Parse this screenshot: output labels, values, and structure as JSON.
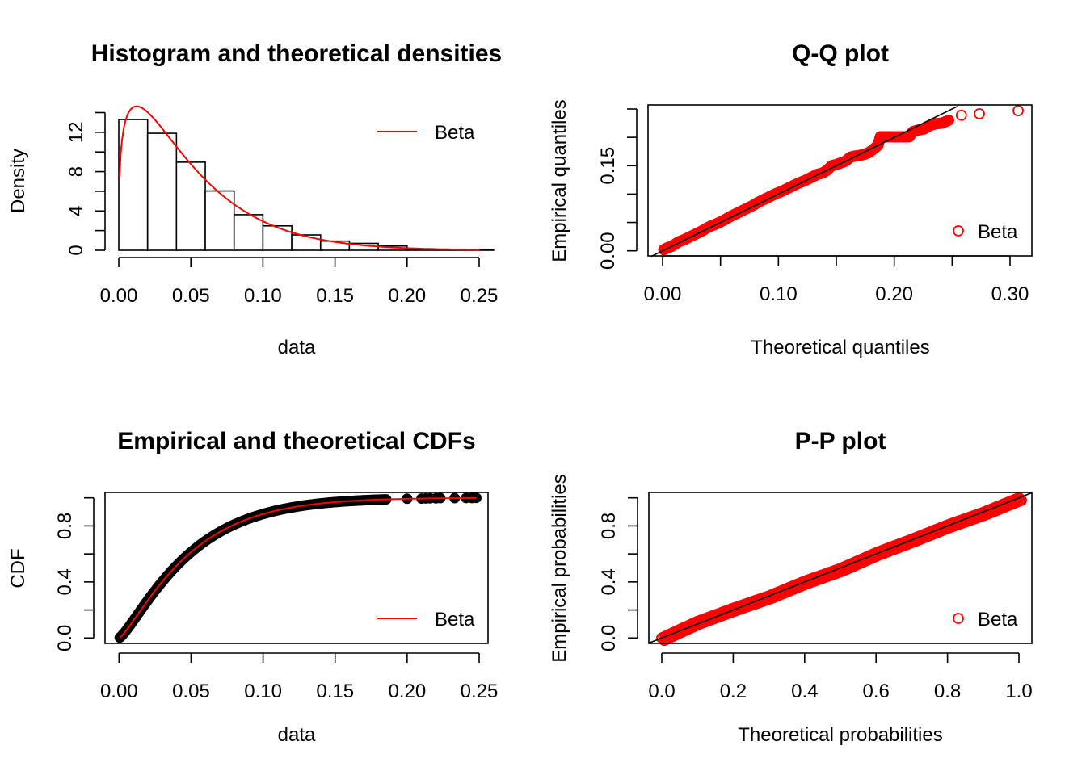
{
  "chart_data": [
    {
      "type": "bar",
      "id": "histogram",
      "title": "Histogram and theoretical densities",
      "xlabel": "data",
      "ylabel": "Density",
      "xlim": [
        0,
        0.26
      ],
      "ylim": [
        0,
        14
      ],
      "xticks": [
        0.0,
        0.05,
        0.1,
        0.15,
        0.2,
        0.25
      ],
      "xtick_labels": [
        "0.00",
        "0.05",
        "0.10",
        "0.15",
        "0.20",
        "0.25"
      ],
      "yticks": [
        0,
        2,
        4,
        6,
        8,
        10,
        12,
        14
      ],
      "ytick_labels": [
        "0",
        "",
        "4",
        "",
        "8",
        "",
        "12",
        ""
      ],
      "bin_width": 0.02,
      "bins": [
        {
          "x0": 0.0,
          "density": 13.3
        },
        {
          "x0": 0.02,
          "density": 11.9
        },
        {
          "x0": 0.04,
          "density": 8.96
        },
        {
          "x0": 0.06,
          "density": 6.03
        },
        {
          "x0": 0.08,
          "density": 3.62
        },
        {
          "x0": 0.1,
          "density": 2.48
        },
        {
          "x0": 0.12,
          "density": 1.56
        },
        {
          "x0": 0.14,
          "density": 0.93
        },
        {
          "x0": 0.16,
          "density": 0.7
        },
        {
          "x0": 0.18,
          "density": 0.43
        },
        {
          "x0": 0.2,
          "density": 0.12
        },
        {
          "x0": 0.22,
          "density": 0.08
        },
        {
          "x0": 0.24,
          "density": 0.1
        }
      ],
      "fitted_curve": {
        "name": "Beta",
        "distribution": "beta",
        "shape1": 1.3,
        "shape2": 25,
        "color": "#ff0000",
        "x_range": [
          0.0,
          0.25
        ]
      },
      "legend": {
        "position": "top-right",
        "entries": [
          {
            "label": "Beta",
            "symbol": "line",
            "color": "#ff0000"
          }
        ]
      }
    },
    {
      "type": "scatter",
      "id": "qq",
      "title": "Q-Q plot",
      "xlabel": "Theoretical quantiles",
      "ylabel": "Empirical quantiles",
      "xlim": [
        -0.0125,
        0.3185
      ],
      "ylim": [
        -0.009,
        0.2545
      ],
      "xticks": [
        0.0,
        0.05,
        0.1,
        0.15,
        0.2,
        0.25,
        0.3
      ],
      "xtick_labels": [
        "0.00",
        "",
        "0.10",
        "",
        "0.20",
        "",
        "0.30"
      ],
      "yticks": [
        0.0,
        0.05,
        0.1,
        0.15,
        0.2,
        0.25
      ],
      "ytick_labels": [
        "0.00",
        "",
        "",
        "0.15",
        "",
        ""
      ],
      "reference_line": {
        "slope": 1,
        "intercept": 0,
        "color": "#000000"
      },
      "points_color": "#ff0000",
      "points": [
        [
          0.001,
          0.002
        ],
        [
          0.003,
          0.004
        ],
        [
          0.005,
          0.006
        ],
        [
          0.008,
          0.008
        ],
        [
          0.011,
          0.012
        ],
        [
          0.014,
          0.016
        ],
        [
          0.018,
          0.019
        ],
        [
          0.022,
          0.023
        ],
        [
          0.026,
          0.027
        ],
        [
          0.03,
          0.031
        ],
        [
          0.034,
          0.035
        ],
        [
          0.038,
          0.04
        ],
        [
          0.042,
          0.044
        ],
        [
          0.046,
          0.047
        ],
        [
          0.05,
          0.051
        ],
        [
          0.054,
          0.055
        ],
        [
          0.058,
          0.06
        ],
        [
          0.062,
          0.064
        ],
        [
          0.066,
          0.068
        ],
        [
          0.07,
          0.072
        ],
        [
          0.074,
          0.076
        ],
        [
          0.078,
          0.08
        ],
        [
          0.082,
          0.085
        ],
        [
          0.086,
          0.089
        ],
        [
          0.09,
          0.093
        ],
        [
          0.094,
          0.097
        ],
        [
          0.098,
          0.101
        ],
        [
          0.102,
          0.104
        ],
        [
          0.106,
          0.108
        ],
        [
          0.11,
          0.112
        ],
        [
          0.114,
          0.116
        ],
        [
          0.118,
          0.12
        ],
        [
          0.122,
          0.123
        ],
        [
          0.126,
          0.127
        ],
        [
          0.13,
          0.131
        ],
        [
          0.134,
          0.135
        ],
        [
          0.138,
          0.137
        ],
        [
          0.142,
          0.142
        ],
        [
          0.146,
          0.15
        ],
        [
          0.15,
          0.152
        ],
        [
          0.154,
          0.155
        ],
        [
          0.158,
          0.158
        ],
        [
          0.162,
          0.165
        ],
        [
          0.166,
          0.167
        ],
        [
          0.17,
          0.168
        ],
        [
          0.174,
          0.17
        ],
        [
          0.178,
          0.173
        ],
        [
          0.182,
          0.179
        ],
        [
          0.186,
          0.186
        ],
        [
          0.188,
          0.201
        ],
        [
          0.193,
          0.201
        ],
        [
          0.198,
          0.201
        ],
        [
          0.203,
          0.201
        ],
        [
          0.208,
          0.201
        ],
        [
          0.213,
          0.201
        ],
        [
          0.216,
          0.21
        ],
        [
          0.221,
          0.213
        ],
        [
          0.226,
          0.215
        ],
        [
          0.231,
          0.221
        ],
        [
          0.236,
          0.224
        ],
        [
          0.241,
          0.225
        ],
        [
          0.247,
          0.23
        ],
        [
          0.258,
          0.239
        ],
        [
          0.2735,
          0.2415
        ],
        [
          0.307,
          0.247
        ]
      ],
      "legend": {
        "position": "bottom-right",
        "entries": [
          {
            "label": "Beta",
            "symbol": "open-circle",
            "color": "#ff0000"
          }
        ]
      }
    },
    {
      "type": "line",
      "id": "cdf",
      "title": "Empirical and theoretical CDFs",
      "xlabel": "data",
      "ylabel": "CDF",
      "xlim": [
        -0.0095,
        0.2555
      ],
      "ylim": [
        -0.04,
        1.04
      ],
      "xticks": [
        0.0,
        0.05,
        0.1,
        0.15,
        0.2,
        0.25
      ],
      "xtick_labels": [
        "0.00",
        "0.05",
        "0.10",
        "0.15",
        "0.20",
        "0.25"
      ],
      "yticks": [
        0.0,
        0.2,
        0.4,
        0.6,
        0.8,
        1.0
      ],
      "ytick_labels": [
        "0.0",
        "",
        "0.4",
        "",
        "0.8",
        ""
      ],
      "theoretical": {
        "name": "Beta",
        "distribution": "beta",
        "shape1": 1.3,
        "shape2": 25,
        "color": "#ff0000"
      },
      "empirical_points_color": "#000000",
      "empirical_tail_points": [
        [
          0.2,
          0.994
        ],
        [
          0.21,
          0.995
        ],
        [
          0.213,
          0.996
        ],
        [
          0.216,
          0.997
        ],
        [
          0.22,
          0.997
        ],
        [
          0.223,
          0.998
        ],
        [
          0.233,
          0.998
        ],
        [
          0.241,
          0.999
        ],
        [
          0.245,
          0.999
        ],
        [
          0.248,
          1.0
        ]
      ],
      "legend": {
        "position": "bottom-right",
        "entries": [
          {
            "label": "Beta",
            "symbol": "line",
            "color": "#ff0000"
          }
        ]
      }
    },
    {
      "type": "scatter",
      "id": "pp",
      "title": "P-P plot",
      "xlabel": "Theoretical probabilities",
      "ylabel": "Empirical probabilities",
      "xlim": [
        -0.04,
        1.04
      ],
      "ylim": [
        -0.04,
        1.04
      ],
      "xticks": [
        0.0,
        0.2,
        0.4,
        0.6,
        0.8,
        1.0
      ],
      "xtick_labels": [
        "0.0",
        "0.2",
        "0.4",
        "0.6",
        "0.8",
        "1.0"
      ],
      "yticks": [
        0.0,
        0.2,
        0.4,
        0.6,
        0.8,
        1.0
      ],
      "ytick_labels": [
        "0.0",
        "",
        "0.4",
        "",
        "0.8",
        ""
      ],
      "reference_line": {
        "slope": 1,
        "intercept": 0,
        "color": "#000000"
      },
      "points_color": "#ff0000",
      "deviation_profile": [
        [
          0.0,
          0.0
        ],
        [
          0.05,
          0.01
        ],
        [
          0.1,
          0.018
        ],
        [
          0.15,
          0.015
        ],
        [
          0.2,
          0.012
        ],
        [
          0.3,
          0.0
        ],
        [
          0.4,
          0.005
        ],
        [
          0.5,
          -0.005
        ],
        [
          0.6,
          0.008
        ],
        [
          0.7,
          0.004
        ],
        [
          0.8,
          0.006
        ],
        [
          0.9,
          -0.004
        ],
        [
          1.0,
          0.0
        ]
      ],
      "legend": {
        "position": "bottom-right",
        "entries": [
          {
            "label": "Beta",
            "symbol": "open-circle",
            "color": "#ff0000"
          }
        ]
      }
    }
  ]
}
